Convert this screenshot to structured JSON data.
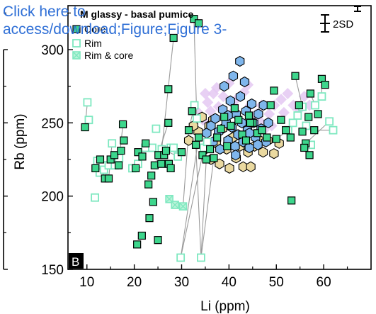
{
  "link": {
    "line1": "Click here to",
    "line2": "access/download;Figure;Figure 3-"
  },
  "chart_data": {
    "type": "scatter",
    "title": "M glassy - basal pumice",
    "panel_label": "B",
    "xlabel": "Li (ppm)",
    "ylabel": "Rb (ppm)",
    "xlim": [
      6,
      70
    ],
    "ylim": [
      150,
      330
    ],
    "x_ticks": [
      10,
      20,
      30,
      40,
      50,
      60
    ],
    "y_ticks": [
      150,
      200,
      250,
      300
    ],
    "error_label": "2SD",
    "legend": {
      "placement": "top-left",
      "entries": [
        {
          "label": "Core",
          "marker": "square-filled"
        },
        {
          "label": "Rim",
          "marker": "square-open"
        },
        {
          "label": "Rim & core",
          "marker": "square-crossed"
        }
      ]
    },
    "colors": {
      "green": "#3dd68c",
      "green_light": "#8ff0c4",
      "green_open": "#7ee8c0",
      "blue": "#7fb6ec",
      "beige": "#ead9a0",
      "lilac": "#e4c8f2",
      "link_blue": "#2f6fd6",
      "tie_line": "#9a9a9a"
    },
    "series": [
      {
        "kind": "core",
        "points": [
          [
            9.6,
            247
          ],
          [
            11.8,
            219
          ],
          [
            12.8,
            225
          ],
          [
            13.8,
            212
          ],
          [
            14.6,
            212
          ],
          [
            15,
            225
          ],
          [
            15.8,
            228
          ],
          [
            16.7,
            221
          ],
          [
            17.2,
            231
          ],
          [
            17.6,
            249
          ],
          [
            17.8,
            238
          ],
          [
            20.3,
            219
          ],
          [
            20.8,
            230
          ],
          [
            21.7,
            227
          ],
          [
            22.4,
            236
          ],
          [
            23,
            208
          ],
          [
            23.6,
            214
          ],
          [
            24.3,
            221
          ],
          [
            25.1,
            228
          ],
          [
            25.7,
            222
          ],
          [
            26.3,
            228
          ],
          [
            26.7,
            231
          ],
          [
            27.3,
            222
          ],
          [
            27.7,
            219
          ],
          [
            23.2,
            185
          ],
          [
            24,
            196
          ],
          [
            20.6,
            167
          ],
          [
            21.6,
            173
          ],
          [
            25,
            170
          ],
          [
            27.2,
            273
          ],
          [
            27.2,
            250
          ],
          [
            28.3,
            308
          ],
          [
            32.6,
            321
          ],
          [
            33.6,
            318
          ],
          [
            30,
            230
          ],
          [
            31.5,
            245
          ],
          [
            32.2,
            258
          ],
          [
            33,
            235
          ],
          [
            33.6,
            240
          ],
          [
            34.4,
            228
          ],
          [
            35.2,
            225
          ],
          [
            36,
            232
          ],
          [
            36.8,
            226
          ],
          [
            37.5,
            240
          ],
          [
            38.3,
            246
          ],
          [
            39,
            254
          ],
          [
            39.6,
            234
          ],
          [
            40.4,
            248
          ],
          [
            41.2,
            260
          ],
          [
            42,
            252
          ],
          [
            42.8,
            242
          ],
          [
            43.6,
            238
          ],
          [
            44.2,
            255
          ],
          [
            45,
            250
          ],
          [
            46,
            243
          ],
          [
            47,
            245
          ],
          [
            48,
            240
          ],
          [
            48.8,
            262
          ],
          [
            49.5,
            272
          ],
          [
            50,
            239
          ],
          [
            51,
            252
          ],
          [
            52,
            245
          ],
          [
            53,
            240
          ],
          [
            53.2,
            197
          ],
          [
            54,
            282
          ],
          [
            54.8,
            262
          ],
          [
            55.5,
            244
          ],
          [
            56.2,
            236
          ],
          [
            56.8,
            254
          ],
          [
            57.2,
            270
          ],
          [
            58,
            245
          ],
          [
            58.8,
            256
          ],
          [
            59.6,
            280
          ],
          [
            60.3,
            276
          ],
          [
            57,
            228
          ],
          [
            55.9,
            233
          ],
          [
            44.5,
            250
          ]
        ]
      },
      {
        "kind": "rim",
        "points": [
          [
            10.1,
            264
          ],
          [
            10.4,
            252
          ],
          [
            11.7,
            199
          ],
          [
            12.2,
            224
          ],
          [
            12.7,
            216
          ],
          [
            13.3,
            221
          ],
          [
            13.6,
            218
          ],
          [
            14.6,
            221
          ],
          [
            15.3,
            236
          ],
          [
            15.9,
            221
          ],
          [
            16.8,
            226
          ],
          [
            19.6,
            219
          ],
          [
            20.8,
            222
          ],
          [
            22.3,
            233
          ],
          [
            23.8,
            233
          ],
          [
            24.6,
            246
          ],
          [
            25.8,
            232
          ],
          [
            27.7,
            233
          ],
          [
            28.3,
            233
          ],
          [
            29.2,
            227
          ],
          [
            29.8,
            158
          ],
          [
            32.7,
            262
          ],
          [
            33.2,
            253
          ],
          [
            34.1,
            158
          ],
          [
            34.7,
            233
          ],
          [
            35.4,
            237
          ],
          [
            52.5,
            245
          ],
          [
            53.5,
            250
          ],
          [
            54.5,
            255
          ],
          [
            55.5,
            261
          ],
          [
            56.3,
            248
          ],
          [
            57.3,
            235
          ],
          [
            58.2,
            262
          ],
          [
            59.6,
            268
          ],
          [
            61.2,
            251
          ],
          [
            62,
            245
          ]
        ]
      },
      {
        "kind": "rimcore",
        "points": [
          [
            27.4,
            198
          ],
          [
            28.6,
            194
          ],
          [
            30.3,
            193
          ]
        ]
      },
      {
        "kind": "hex_blue",
        "points": [
          [
            35.3,
            243
          ],
          [
            36.2,
            248
          ],
          [
            36.6,
            237
          ],
          [
            37.1,
            253
          ],
          [
            37.8,
            244
          ],
          [
            38.1,
            232
          ],
          [
            38.7,
            259
          ],
          [
            39,
            275
          ],
          [
            39.4,
            250
          ],
          [
            39.8,
            238
          ],
          [
            40.3,
            265
          ],
          [
            40.6,
            247
          ],
          [
            40.9,
            282
          ],
          [
            41.3,
            234
          ],
          [
            41.5,
            256
          ],
          [
            41.9,
            242
          ],
          [
            42.3,
            292
          ],
          [
            42.4,
            268
          ],
          [
            42.7,
            250
          ],
          [
            43,
            237
          ],
          [
            43.3,
            278
          ],
          [
            43.6,
            258
          ],
          [
            43.9,
            245
          ],
          [
            44.3,
            233
          ],
          [
            44.8,
            263
          ],
          [
            45.2,
            250
          ],
          [
            45.6,
            240
          ],
          [
            46.2,
            256
          ],
          [
            46.8,
            246
          ],
          [
            47.3,
            262
          ],
          [
            47.8,
            237
          ],
          [
            48.3,
            250
          ],
          [
            39.8,
            255
          ],
          [
            41.4,
            228
          ],
          [
            44.3,
            243
          ],
          [
            46.1,
            235
          ]
        ]
      },
      {
        "kind": "hex_beige",
        "points": [
          [
            33.5,
            244
          ],
          [
            34.3,
            254
          ],
          [
            35,
            232
          ],
          [
            35.8,
            248
          ],
          [
            36.2,
            225
          ],
          [
            36.6,
            252
          ],
          [
            37.3,
            236
          ],
          [
            38,
            222
          ],
          [
            38.6,
            246
          ],
          [
            39.5,
            232
          ],
          [
            40.1,
            219
          ],
          [
            40.8,
            240
          ],
          [
            41.5,
            226
          ],
          [
            42.3,
            234
          ],
          [
            43,
            220
          ],
          [
            44,
            230
          ],
          [
            44.6,
            220
          ],
          [
            45.4,
            234
          ],
          [
            46.5,
            238
          ],
          [
            47.2,
            230
          ],
          [
            48.2,
            238
          ],
          [
            49.5,
            229
          ],
          [
            50.6,
            236
          ],
          [
            31.5,
            238
          ],
          [
            32.5,
            248
          ]
        ]
      },
      {
        "kind": "diamond_lilac",
        "points": [
          [
            33.2,
            258
          ],
          [
            34.5,
            252
          ],
          [
            35.5,
            264
          ],
          [
            36.7,
            270
          ],
          [
            37.8,
            261
          ],
          [
            38.8,
            268
          ],
          [
            40,
            277
          ],
          [
            41.5,
            266
          ],
          [
            43.2,
            271
          ],
          [
            44.5,
            262
          ],
          [
            45.8,
            256
          ],
          [
            46.6,
            251
          ],
          [
            47.4,
            245
          ],
          [
            48.5,
            256
          ],
          [
            49.6,
            262
          ],
          [
            51,
            266
          ],
          [
            52.4,
            270
          ],
          [
            53.6,
            262
          ],
          [
            54.8,
            259
          ],
          [
            55.9,
            268
          ],
          [
            57,
            262
          ],
          [
            44,
            276
          ],
          [
            41,
            258
          ],
          [
            36.1,
            258
          ],
          [
            39.3,
            256
          ],
          [
            46.9,
            262
          ],
          [
            49,
            248
          ],
          [
            51.6,
            257
          ],
          [
            35,
            270
          ],
          [
            37.4,
            274
          ]
        ]
      }
    ],
    "tie_lines": [
      [
        [
          9.6,
          247
        ],
        [
          10.1,
          264
        ]
      ],
      [
        [
          12.2,
          224
        ],
        [
          13.8,
          212
        ]
      ],
      [
        [
          14.6,
          212
        ],
        [
          15.3,
          236
        ]
      ],
      [
        [
          16.7,
          221
        ],
        [
          17.6,
          249
        ]
      ],
      [
        [
          22.4,
          236
        ],
        [
          23.8,
          233
        ]
      ],
      [
        [
          25.8,
          232
        ],
        [
          28.3,
          308
        ]
      ],
      [
        [
          24.3,
          221
        ],
        [
          27.2,
          250
        ]
      ],
      [
        [
          26.7,
          231
        ],
        [
          29.2,
          227
        ]
      ],
      [
        [
          29.8,
          158
        ],
        [
          33.6,
          240
        ]
      ],
      [
        [
          29.8,
          158
        ],
        [
          34.4,
          228
        ]
      ],
      [
        [
          34.1,
          158
        ],
        [
          35.2,
          225
        ]
      ],
      [
        [
          34.1,
          158
        ],
        [
          36.8,
          226
        ]
      ],
      [
        [
          34.1,
          158
        ],
        [
          33,
          235
        ]
      ],
      [
        [
          30.3,
          193
        ],
        [
          31.5,
          245
        ]
      ],
      [
        [
          31.5,
          245
        ],
        [
          32.7,
          262
        ]
      ],
      [
        [
          33.2,
          253
        ],
        [
          32.6,
          321
        ]
      ],
      [
        [
          54,
          282
        ],
        [
          55.5,
          261
        ]
      ],
      [
        [
          57.2,
          270
        ],
        [
          58.2,
          262
        ]
      ],
      [
        [
          56.2,
          236
        ],
        [
          61.2,
          251
        ]
      ],
      [
        [
          58,
          245
        ],
        [
          62,
          245
        ]
      ],
      [
        [
          50,
          239
        ],
        [
          52.5,
          245
        ]
      ],
      [
        [
          52,
          245
        ],
        [
          53.5,
          250
        ]
      ],
      [
        [
          59.6,
          280
        ],
        [
          59.6,
          268
        ]
      ],
      [
        [
          55.5,
          244
        ],
        [
          56.3,
          248
        ]
      ]
    ]
  }
}
